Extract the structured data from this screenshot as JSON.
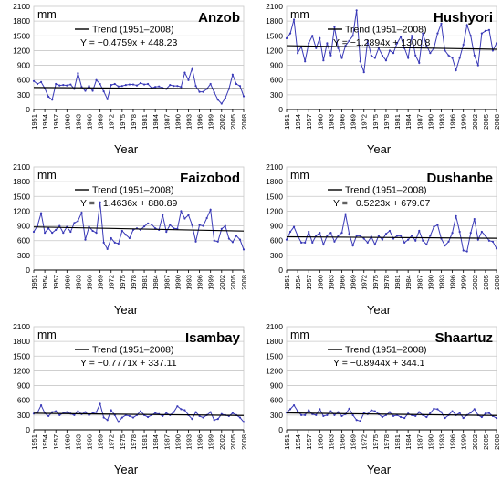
{
  "colors": {
    "series": "#3a3ab8",
    "trend": "#000000",
    "grid": "#c8c8c8",
    "axis": "#000000",
    "text": "#000000"
  },
  "chart_data": [
    {
      "type": "line",
      "title": "Anzob",
      "unit_label": "mm",
      "xlabel": "Year",
      "trend_label": "Trend (1951–2008)",
      "equation": "Y = −0.4759x + 448.23",
      "trend": {
        "slope": -0.4759,
        "intercept": 448.23
      },
      "x_range": [
        1951,
        2008
      ],
      "ylim": [
        0,
        2100
      ],
      "y_ticks": [
        "0",
        "300",
        "600",
        "900",
        "1200",
        "1500",
        "1800",
        "2100"
      ],
      "x_ticks": [
        "1951",
        "1954",
        "1957",
        "1960",
        "1963",
        "1966",
        "1969",
        "1972",
        "1975",
        "1978",
        "1981",
        "1984",
        "1987",
        "1990",
        "1993",
        "1996",
        "1999",
        "2002",
        "2005",
        "2008"
      ],
      "x_start": 1951,
      "values": [
        580,
        520,
        560,
        430,
        260,
        200,
        520,
        490,
        500,
        490,
        510,
        420,
        740,
        460,
        380,
        480,
        380,
        600,
        520,
        370,
        210,
        500,
        520,
        470,
        480,
        500,
        510,
        510,
        490,
        540,
        510,
        520,
        440,
        460,
        470,
        440,
        420,
        500,
        480,
        480,
        460,
        750,
        600,
        840,
        480,
        360,
        360,
        420,
        520,
        350,
        200,
        120,
        230,
        420,
        710,
        520,
        480,
        270
      ]
    },
    {
      "type": "line",
      "title": "Hushyori",
      "unit_label": "mm",
      "xlabel": "Year",
      "trend_label": "Trend (1951–2008)",
      "equation": "Y = −1.2894x + 1300.8",
      "trend": {
        "slope": -1.2894,
        "intercept": 1300.8
      },
      "x_range": [
        1951,
        2008
      ],
      "ylim": [
        0,
        2100
      ],
      "y_ticks": [
        "0",
        "300",
        "600",
        "900",
        "1200",
        "1500",
        "1800",
        "2100"
      ],
      "x_ticks": [
        "1951",
        "1954",
        "1957",
        "1960",
        "1963",
        "1966",
        "1969",
        "1972",
        "1975",
        "1978",
        "1981",
        "1984",
        "1987",
        "1990",
        "1993",
        "1996",
        "1999",
        "2002",
        "2005",
        "2008"
      ],
      "x_start": 1951,
      "values": [
        1450,
        1550,
        1830,
        1150,
        1280,
        980,
        1350,
        1500,
        1250,
        1450,
        1000,
        1350,
        1100,
        1680,
        1250,
        1050,
        1300,
        1400,
        1500,
        2020,
        980,
        760,
        1400,
        1100,
        1050,
        1250,
        1100,
        1000,
        1200,
        1150,
        1350,
        1480,
        1250,
        1050,
        1500,
        1100,
        950,
        1550,
        1300,
        1150,
        1250,
        1550,
        1750,
        1200,
        1100,
        1050,
        800,
        1050,
        1320,
        1720,
        1500,
        1100,
        900,
        1550,
        1600,
        1620,
        1200,
        1350
      ]
    },
    {
      "type": "line",
      "title": "Faizobod",
      "unit_label": "mm",
      "xlabel": "Year",
      "trend_label": "Trend (1951–2008)",
      "equation": "Y = −1.4636x + 880.89",
      "trend": {
        "slope": -1.4636,
        "intercept": 880.89
      },
      "x_range": [
        1951,
        2008
      ],
      "ylim": [
        0,
        2100
      ],
      "y_ticks": [
        "0",
        "300",
        "600",
        "900",
        "1200",
        "1500",
        "1800",
        "2100"
      ],
      "x_ticks": [
        "1951",
        "1954",
        "1957",
        "1960",
        "1963",
        "1966",
        "1969",
        "1972",
        "1975",
        "1978",
        "1981",
        "1984",
        "1987",
        "1990",
        "1993",
        "1996",
        "1999",
        "2002",
        "2005",
        "2008"
      ],
      "x_start": 1951,
      "values": [
        780,
        900,
        1160,
        760,
        850,
        760,
        820,
        900,
        760,
        880,
        780,
        960,
        1000,
        1170,
        620,
        880,
        800,
        760,
        1380,
        560,
        430,
        650,
        560,
        540,
        800,
        720,
        650,
        820,
        850,
        820,
        890,
        950,
        930,
        850,
        820,
        1120,
        780,
        920,
        850,
        840,
        1200,
        1050,
        1120,
        920,
        580,
        920,
        900,
        1060,
        1230,
        600,
        580,
        840,
        900,
        640,
        570,
        700,
        620,
        420
      ]
    },
    {
      "type": "line",
      "title": "Dushanbe",
      "unit_label": "mm",
      "xlabel": "Year",
      "trend_label": "Trend (1951–2008)",
      "equation": "Y = −0.5223x + 679.07",
      "trend": {
        "slope": -0.5223,
        "intercept": 679.07
      },
      "x_range": [
        1951,
        2008
      ],
      "ylim": [
        0,
        2100
      ],
      "y_ticks": [
        "0",
        "300",
        "600",
        "900",
        "1200",
        "1500",
        "1800",
        "2100"
      ],
      "x_ticks": [
        "1951",
        "1954",
        "1957",
        "1960",
        "1963",
        "1966",
        "1969",
        "1972",
        "1975",
        "1978",
        "1981",
        "1984",
        "1987",
        "1990",
        "1993",
        "1996",
        "1999",
        "2002",
        "2005",
        "2008"
      ],
      "x_start": 1951,
      "values": [
        620,
        780,
        880,
        700,
        560,
        560,
        780,
        560,
        700,
        760,
        520,
        700,
        760,
        580,
        700,
        760,
        1140,
        740,
        500,
        700,
        700,
        640,
        560,
        680,
        520,
        700,
        620,
        740,
        800,
        640,
        700,
        700,
        560,
        620,
        700,
        600,
        800,
        600,
        520,
        700,
        880,
        920,
        640,
        500,
        580,
        760,
        1100,
        780,
        400,
        380,
        760,
        1040,
        620,
        780,
        700,
        600,
        580,
        440
      ]
    },
    {
      "type": "line",
      "title": "Isambay",
      "unit_label": "mm",
      "xlabel": "Year",
      "trend_label": "Trend (1951–2008)",
      "equation": "Y = −0.7771x + 337.11",
      "trend": {
        "slope": -0.7771,
        "intercept": 337.11
      },
      "x_range": [
        1951,
        2008
      ],
      "ylim": [
        0,
        2100
      ],
      "y_ticks": [
        "0",
        "300",
        "600",
        "900",
        "1200",
        "1500",
        "1800",
        "2100"
      ],
      "x_ticks": [
        "1951",
        "1954",
        "1957",
        "1960",
        "1963",
        "1966",
        "1969",
        "1972",
        "1975",
        "1978",
        "1981",
        "1984",
        "1987",
        "1990",
        "1993",
        "1996",
        "1999",
        "2002",
        "2005",
        "2008"
      ],
      "x_start": 1951,
      "values": [
        330,
        350,
        500,
        340,
        280,
        360,
        380,
        300,
        340,
        360,
        330,
        300,
        380,
        320,
        360,
        300,
        340,
        360,
        530,
        250,
        200,
        400,
        300,
        160,
        250,
        300,
        280,
        250,
        300,
        380,
        300,
        260,
        300,
        340,
        320,
        280,
        340,
        300,
        360,
        480,
        420,
        400,
        300,
        220,
        360,
        280,
        250,
        300,
        360,
        200,
        220,
        320,
        300,
        280,
        340,
        300,
        250,
        160
      ]
    },
    {
      "type": "line",
      "title": "Shaartuz",
      "unit_label": "mm",
      "xlabel": "Year",
      "trend_label": "Trend (1951–2008)",
      "equation": "Y = −0.8944x + 344.1",
      "trend": {
        "slope": -0.8944,
        "intercept": 344.1
      },
      "x_range": [
        1951,
        2008
      ],
      "ylim": [
        0,
        2100
      ],
      "y_ticks": [
        "0",
        "300",
        "600",
        "900",
        "1200",
        "1500",
        "1800",
        "2100"
      ],
      "x_ticks": [
        "1951",
        "1954",
        "1957",
        "1960",
        "1963",
        "1966",
        "1969",
        "1972",
        "1975",
        "1978",
        "1981",
        "1984",
        "1987",
        "1990",
        "1993",
        "1996",
        "1999",
        "2002",
        "2005",
        "2008"
      ],
      "x_start": 1951,
      "values": [
        350,
        420,
        500,
        380,
        300,
        300,
        400,
        320,
        300,
        420,
        280,
        300,
        380,
        300,
        360,
        280,
        320,
        430,
        300,
        200,
        180,
        340,
        320,
        400,
        380,
        320,
        260,
        300,
        360,
        280,
        300,
        260,
        240,
        330,
        300,
        280,
        360,
        300,
        260,
        340,
        430,
        420,
        360,
        240,
        300,
        380,
        300,
        340,
        240,
        300,
        350,
        420,
        300,
        260,
        330,
        340,
        280,
        240
      ]
    }
  ]
}
